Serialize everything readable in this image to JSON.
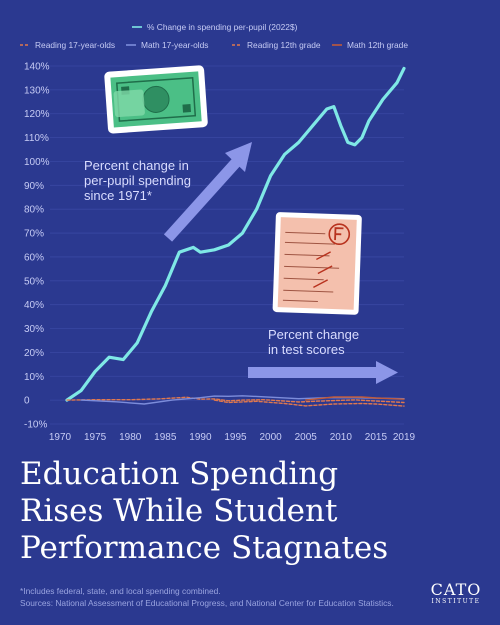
{
  "chart_data": {
    "type": "line",
    "title": "Education Spending Rises While Student Performance Stagnates",
    "title_lines": [
      "Education Spending",
      "Rises While Student",
      "Performance Stagnates"
    ],
    "x_ticks": [
      "1970",
      "1975",
      "1980",
      "1985",
      "1990",
      "1995",
      "2000",
      "2005",
      "2010",
      "2015",
      "2019"
    ],
    "y_ticks": [
      "140%",
      "130%",
      "120%",
      "110%",
      "100%",
      "90%",
      "80%",
      "70%",
      "60%",
      "50%",
      "40%",
      "30%",
      "20%",
      "10%",
      "0",
      "-10%"
    ],
    "xlim": [
      1970,
      2019
    ],
    "ylim": [
      -10,
      140
    ],
    "grid": true,
    "legend_position": "top",
    "series": [
      {
        "name": "% Change in spending per-pupil (2022$)",
        "color": "#7fe8e6",
        "style": "solid",
        "x": [
          1971,
          1973,
          1975,
          1977,
          1979,
          1981,
          1983,
          1985,
          1987,
          1989,
          1990,
          1992,
          1994,
          1996,
          1998,
          2000,
          2002,
          2004,
          2006,
          2008,
          2009,
          2010,
          2011,
          2012,
          2013,
          2014,
          2016,
          2018,
          2019
        ],
        "values": [
          0,
          4,
          12,
          18,
          17,
          24,
          37,
          48,
          62,
          64,
          62,
          63,
          65,
          70,
          80,
          94,
          103,
          108,
          115,
          122,
          123,
          115,
          108,
          107,
          110,
          117,
          126,
          133,
          139
        ]
      },
      {
        "name": "Reading 17-year-olds",
        "color": "#e0784e",
        "style": "dashed",
        "x": [
          1971,
          1975,
          1980,
          1984,
          1988,
          1990,
          1992,
          1994,
          1996,
          1999,
          2004,
          2008,
          2012,
          2019
        ],
        "values": [
          0,
          0.2,
          0.2,
          0.5,
          1.2,
          0.4,
          0.5,
          -0.3,
          0,
          0.2,
          -0.8,
          -0.3,
          0.1,
          -1
        ]
      },
      {
        "name": "Math 17-year-olds",
        "color": "#7d8ddb",
        "style": "solid",
        "x": [
          1973,
          1978,
          1982,
          1986,
          1990,
          1992,
          1994,
          1996,
          1999,
          2004,
          2008,
          2012,
          2019
        ],
        "values": [
          0,
          -0.7,
          -1.6,
          0,
          1,
          1.7,
          1.6,
          1.8,
          1.4,
          0.6,
          1,
          1,
          0.6
        ]
      },
      {
        "name": "Reading 12th grade",
        "color": "#e0784e",
        "style": "dashed",
        "x": [
          1992,
          1994,
          1998,
          2002,
          2005,
          2009,
          2013,
          2015,
          2019
        ],
        "values": [
          0,
          -1,
          -0.5,
          -1.4,
          -2.4,
          -1.6,
          -1.4,
          -1.6,
          -2.5
        ]
      },
      {
        "name": "Math 12th grade",
        "color": "#c05a3a",
        "style": "solid",
        "x": [
          2005,
          2009,
          2013,
          2015,
          2019
        ],
        "values": [
          0,
          1.3,
          1.3,
          0.9,
          0.4
        ]
      }
    ],
    "annotations": [
      [
        "Percent change in",
        "per-pupil spending",
        "since 1971*"
      ],
      [
        "Percent change",
        "in test scores"
      ]
    ]
  },
  "footnote_lines": [
    "*Includes federal, state, and local spending combined.",
    "Sources: National Assessment of Educational Progress, and National Center for Education Statistics."
  ],
  "logo": {
    "big": "CATO",
    "small": "INSTITUTE"
  },
  "colors": {
    "background": "#2b3990",
    "axis_text": "#c7ccf5",
    "arrow": "#8c96e8",
    "grid": "#3a49a3"
  },
  "icons": [
    "dollar-bills-icon",
    "graded-test-paper-icon"
  ]
}
